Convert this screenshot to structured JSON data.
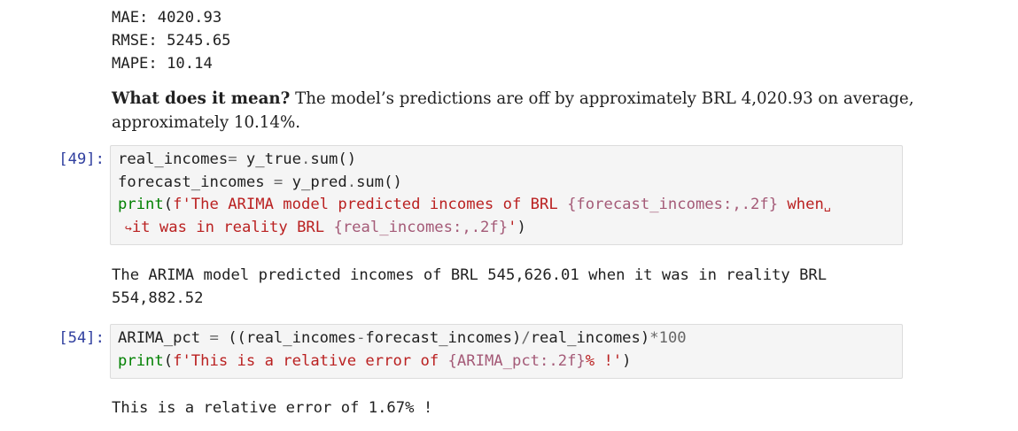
{
  "metrics": {
    "mae": "MAE: 4020.93",
    "rmse": "RMSE: 5245.65",
    "mape": "MAPE: 10.14"
  },
  "markdown": {
    "question": "What does it mean?",
    "answer_line1": " The model’s predictions are off by approximately BRL 4,020.93 on average,",
    "answer_line2": "approximately 10.14%."
  },
  "cell49": {
    "prompt": "[49]:",
    "l1_a": "real_incomes",
    "l1_b": "=",
    "l1_c": " y_true",
    "l1_d": ".",
    "l1_e": "sum()",
    "l2_a": "forecast_incomes ",
    "l2_b": "=",
    "l2_c": " y_pred",
    "l2_d": ".",
    "l2_e": "sum()",
    "l3_print": "print",
    "l3_open": "(",
    "l3_str1": "f'The ARIMA model predicted incomes of BRL ",
    "l3_interp": "{forecast_incomes:,.2f}",
    "l3_str2": " when",
    "l3_wrap": "␣",
    "l4_wrap": "↪",
    "l4_str1": "it was in reality BRL ",
    "l4_interp": "{real_incomes:,.2f}",
    "l4_str2": "'",
    "l4_close": ")",
    "output_line1": "The ARIMA model predicted incomes of BRL 545,626.01 when it was in reality BRL",
    "output_line2": "554,882.52"
  },
  "cell54": {
    "prompt": "[54]:",
    "l1_a": "ARIMA_pct ",
    "l1_b": "=",
    "l1_c": " ((real_incomes",
    "l1_d": "-",
    "l1_e": "forecast_incomes)",
    "l1_f": "/",
    "l1_g": "real_incomes)",
    "l1_h": "*",
    "l1_i": "100",
    "l2_print": "print",
    "l2_open": "(",
    "l2_str1": "f'This is a relative error of ",
    "l2_interp": "{ARIMA_pct:.2f}",
    "l2_str2": "% !'",
    "l2_close": ")",
    "output": "This is a relative error of 1.67% !"
  }
}
